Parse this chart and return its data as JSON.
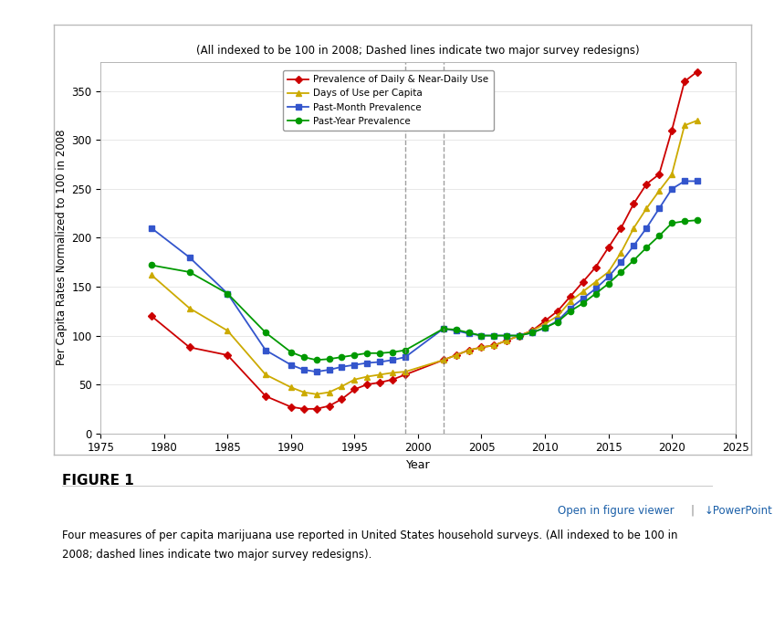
{
  "title": "(All indexed to be 100 in 2008; Dashed lines indicate two major survey redesigns)",
  "ylabel": "Per Capita Rates Normalized to 100 in 2008",
  "xlabel": "Year",
  "ylim": [
    0,
    380
  ],
  "xlim": [
    1975,
    2025
  ],
  "dashed_lines": [
    1999,
    2002
  ],
  "series": {
    "daily": {
      "label": "Prevalence of Daily & Near-Daily Use",
      "color": "#cc0000",
      "marker": "D",
      "years": [
        1979,
        1982,
        1985,
        1988,
        1990,
        1991,
        1992,
        1993,
        1994,
        1995,
        1996,
        1997,
        1998,
        1999,
        2002,
        2003,
        2004,
        2005,
        2006,
        2007,
        2008,
        2009,
        2010,
        2011,
        2012,
        2013,
        2014,
        2015,
        2016,
        2017,
        2018,
        2019,
        2020,
        2021,
        2022
      ],
      "values": [
        120,
        88,
        80,
        38,
        27,
        25,
        25,
        28,
        35,
        45,
        50,
        52,
        55,
        60,
        75,
        80,
        85,
        88,
        90,
        95,
        100,
        105,
        115,
        125,
        140,
        155,
        170,
        190,
        210,
        235,
        255,
        265,
        310,
        360,
        370
      ]
    },
    "days": {
      "label": "Days of Use per Capita",
      "color": "#ccaa00",
      "marker": "^",
      "years": [
        1979,
        1982,
        1985,
        1988,
        1990,
        1991,
        1992,
        1993,
        1994,
        1995,
        1996,
        1997,
        1998,
        1999,
        2002,
        2003,
        2004,
        2005,
        2006,
        2007,
        2008,
        2009,
        2010,
        2011,
        2012,
        2013,
        2014,
        2015,
        2016,
        2017,
        2018,
        2019,
        2020,
        2021,
        2022
      ],
      "values": [
        162,
        128,
        105,
        60,
        47,
        42,
        40,
        42,
        48,
        55,
        58,
        60,
        62,
        63,
        75,
        80,
        85,
        88,
        90,
        95,
        100,
        105,
        112,
        120,
        135,
        145,
        155,
        165,
        185,
        210,
        230,
        248,
        265,
        315,
        320
      ]
    },
    "month": {
      "label": "Past-Month Prevalence",
      "color": "#3355cc",
      "marker": "s",
      "years": [
        1979,
        1982,
        1985,
        1988,
        1990,
        1991,
        1992,
        1993,
        1994,
        1995,
        1996,
        1997,
        1998,
        1999,
        2002,
        2003,
        2004,
        2005,
        2006,
        2007,
        2008,
        2009,
        2010,
        2011,
        2012,
        2013,
        2014,
        2015,
        2016,
        2017,
        2018,
        2019,
        2020,
        2021,
        2022
      ],
      "values": [
        210,
        180,
        143,
        85,
        70,
        65,
        63,
        65,
        68,
        70,
        72,
        73,
        75,
        78,
        107,
        105,
        102,
        100,
        100,
        100,
        100,
        103,
        108,
        115,
        128,
        138,
        148,
        160,
        175,
        192,
        210,
        230,
        250,
        258,
        258
      ]
    },
    "year": {
      "label": "Past-Year Prevalence",
      "color": "#009900",
      "marker": "o",
      "years": [
        1979,
        1982,
        1985,
        1988,
        1990,
        1991,
        1992,
        1993,
        1994,
        1995,
        1996,
        1997,
        1998,
        1999,
        2002,
        2003,
        2004,
        2005,
        2006,
        2007,
        2008,
        2009,
        2010,
        2011,
        2012,
        2013,
        2014,
        2015,
        2016,
        2017,
        2018,
        2019,
        2020,
        2021,
        2022
      ],
      "values": [
        172,
        165,
        143,
        103,
        83,
        78,
        75,
        76,
        78,
        80,
        82,
        82,
        83,
        85,
        107,
        106,
        103,
        100,
        100,
        100,
        100,
        103,
        108,
        114,
        125,
        133,
        143,
        153,
        165,
        177,
        190,
        202,
        215,
        217,
        218
      ]
    }
  },
  "figure_background": "#ffffff",
  "plot_background": "#ffffff",
  "chart_border_color": "#aaaaaa",
  "figure1_text": "FIGURE 1",
  "viewer_text": "Open in figure viewer",
  "powerpoint_text": "↓PowerPoint",
  "caption_text": "Four measures of per capita marijuana use reported in United States household surveys. (All indexed to be 100 in\n2008; dashed lines indicate two major survey redesigns).",
  "yticks": [
    0,
    50,
    100,
    150,
    200,
    250,
    300,
    350
  ],
  "xticks": [
    1975,
    1980,
    1985,
    1990,
    1995,
    2000,
    2005,
    2010,
    2015,
    2020,
    2025
  ]
}
